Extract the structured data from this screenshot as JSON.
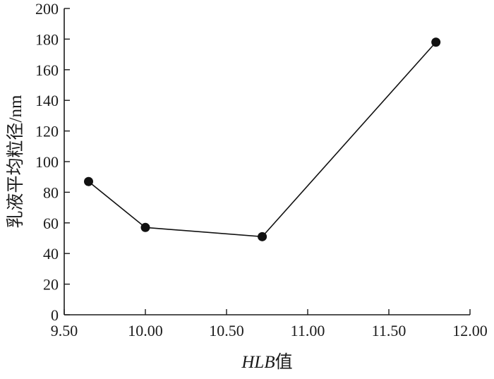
{
  "chart_data": {
    "type": "line",
    "title": "",
    "xlabel_prefix": "HLB",
    "xlabel_suffix": "值",
    "ylabel": "乳液平均粒径/nm",
    "xlim": [
      9.5,
      12.0
    ],
    "ylim": [
      0,
      200
    ],
    "x_ticks": [
      9.5,
      10.0,
      10.5,
      11.0,
      11.5,
      12.0
    ],
    "x_tick_labels": [
      "9.50",
      "10.00",
      "10.50",
      "11.00",
      "11.50",
      "12.00"
    ],
    "y_ticks": [
      0,
      20,
      40,
      60,
      80,
      100,
      120,
      140,
      160,
      180,
      200
    ],
    "y_tick_labels": [
      "0",
      "20",
      "40",
      "60",
      "80",
      "100",
      "120",
      "140",
      "160",
      "180",
      "200"
    ],
    "grid": false,
    "series": [
      {
        "x": [
          9.65,
          10.0,
          10.72,
          11.79
        ],
        "y": [
          87,
          57,
          51,
          178
        ]
      }
    ],
    "colors": {
      "line": "#111111",
      "marker": "#111111",
      "axis": "#1a1a1a"
    }
  }
}
